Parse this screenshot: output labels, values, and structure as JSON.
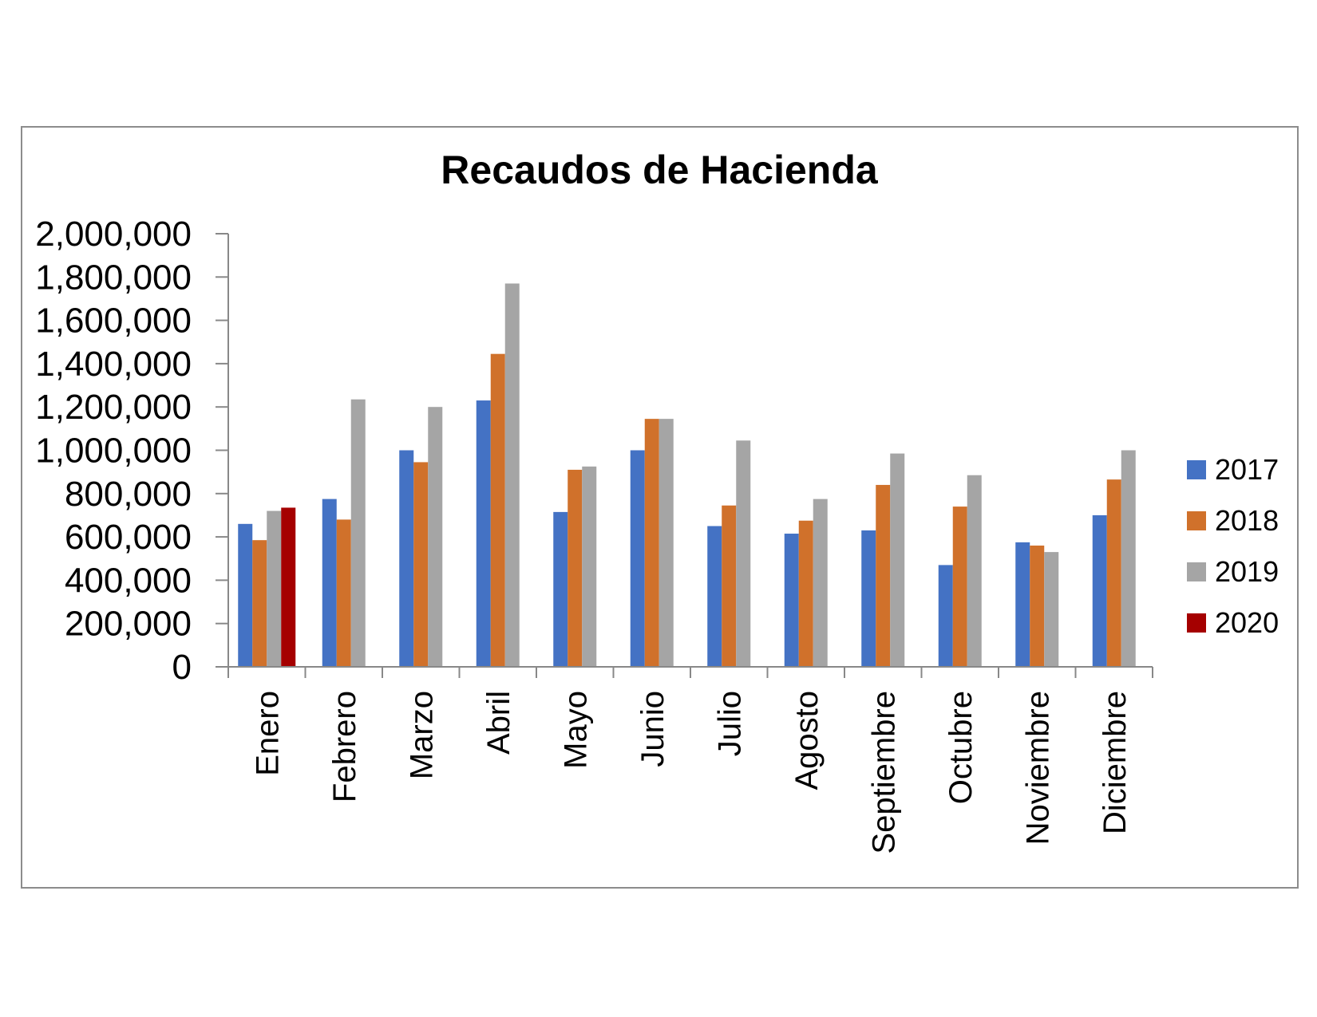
{
  "chart_data": {
    "type": "bar",
    "title": "Recaudos de Hacienda",
    "xlabel": "",
    "ylabel": "",
    "ylim": [
      0,
      2000000
    ],
    "yticks": [
      "0",
      "200,000",
      "400,000",
      "600,000",
      "800,000",
      "1,000,000",
      "1,200,000",
      "1,400,000",
      "1,600,000",
      "1,800,000",
      "2,000,000"
    ],
    "ytick_values": [
      0,
      200000,
      400000,
      600000,
      800000,
      1000000,
      1200000,
      1400000,
      1600000,
      1800000,
      2000000
    ],
    "categories": [
      "Enero",
      "Febrero",
      "Marzo",
      "Abril",
      "Mayo",
      "Junio",
      "Julio",
      "Agosto",
      "Septiembre",
      "Octubre",
      "Noviembre",
      "Diciembre"
    ],
    "series": [
      {
        "name": "2017",
        "color": "#4472C4",
        "values": [
          660000,
          775000,
          1000000,
          1230000,
          715000,
          1000000,
          650000,
          615000,
          630000,
          470000,
          575000,
          700000
        ]
      },
      {
        "name": "2018",
        "color": "#D0712B",
        "values": [
          585000,
          680000,
          945000,
          1445000,
          910000,
          1145000,
          745000,
          675000,
          840000,
          740000,
          560000,
          865000
        ]
      },
      {
        "name": "2019",
        "color": "#A5A5A5",
        "values": [
          720000,
          1235000,
          1200000,
          1770000,
          925000,
          1145000,
          1045000,
          775000,
          985000,
          885000,
          530000,
          1000000
        ]
      },
      {
        "name": "2020",
        "color": "#A50000",
        "values": [
          735000,
          null,
          null,
          null,
          null,
          null,
          null,
          null,
          null,
          null,
          null,
          null
        ]
      }
    ],
    "legend_position": "right",
    "grid": false
  }
}
